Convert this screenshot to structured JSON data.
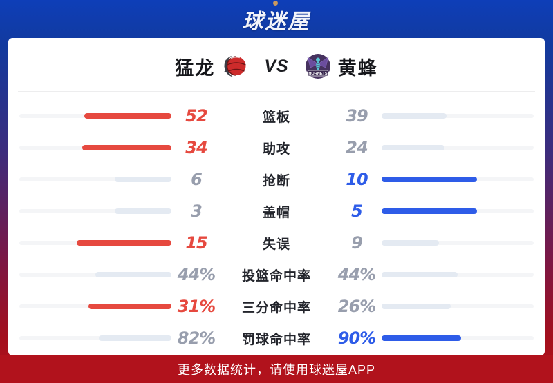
{
  "header": {
    "logo_text": "球迷屋"
  },
  "match": {
    "home_team": {
      "name": "猛龙"
    },
    "away_team": {
      "name": "黄蜂",
      "logo_caption": "HORNETS"
    },
    "vs_label": "VS"
  },
  "colors": {
    "home-accent": "#e6493f",
    "away-accent": "#2e5ce8",
    "neutral-fill": "#e4eaf2",
    "bar-track": "#f4f5f7",
    "muted-text": "#989ead",
    "label-text": "#23252c",
    "banner-red": "#b1121c",
    "top-blue": "#0d3eb8"
  },
  "stats": [
    {
      "label": "篮板",
      "home": {
        "value": "52",
        "color": "red",
        "bar": 57.1
      },
      "away": {
        "value": "39",
        "color": "gray",
        "bar": 42.9
      }
    },
    {
      "label": "助攻",
      "home": {
        "value": "34",
        "color": "red",
        "bar": 58.6
      },
      "away": {
        "value": "24",
        "color": "gray",
        "bar": 41.4
      }
    },
    {
      "label": "抢断",
      "home": {
        "value": "6",
        "color": "gray",
        "bar": 37.5
      },
      "away": {
        "value": "10",
        "color": "blue",
        "bar": 62.5
      }
    },
    {
      "label": "盖帽",
      "home": {
        "value": "3",
        "color": "gray",
        "bar": 37.5
      },
      "away": {
        "value": "5",
        "color": "blue",
        "bar": 62.5
      }
    },
    {
      "label": "失误",
      "home": {
        "value": "15",
        "color": "red",
        "bar": 62.5
      },
      "away": {
        "value": "9",
        "color": "gray",
        "bar": 37.5
      }
    },
    {
      "label": "投篮命中率",
      "home": {
        "value": "44%",
        "color": "gray",
        "bar": 50.0
      },
      "away": {
        "value": "44%",
        "color": "gray",
        "bar": 50.0
      }
    },
    {
      "label": "三分命中率",
      "home": {
        "value": "31%",
        "color": "red",
        "bar": 54.4
      },
      "away": {
        "value": "26%",
        "color": "gray",
        "bar": 45.6
      }
    },
    {
      "label": "罚球命中率",
      "home": {
        "value": "82%",
        "color": "gray",
        "bar": 47.7
      },
      "away": {
        "value": "90%",
        "color": "blue",
        "bar": 52.3
      }
    }
  ],
  "footer": {
    "text": "更多数据统计，请使用球迷屋APP"
  }
}
